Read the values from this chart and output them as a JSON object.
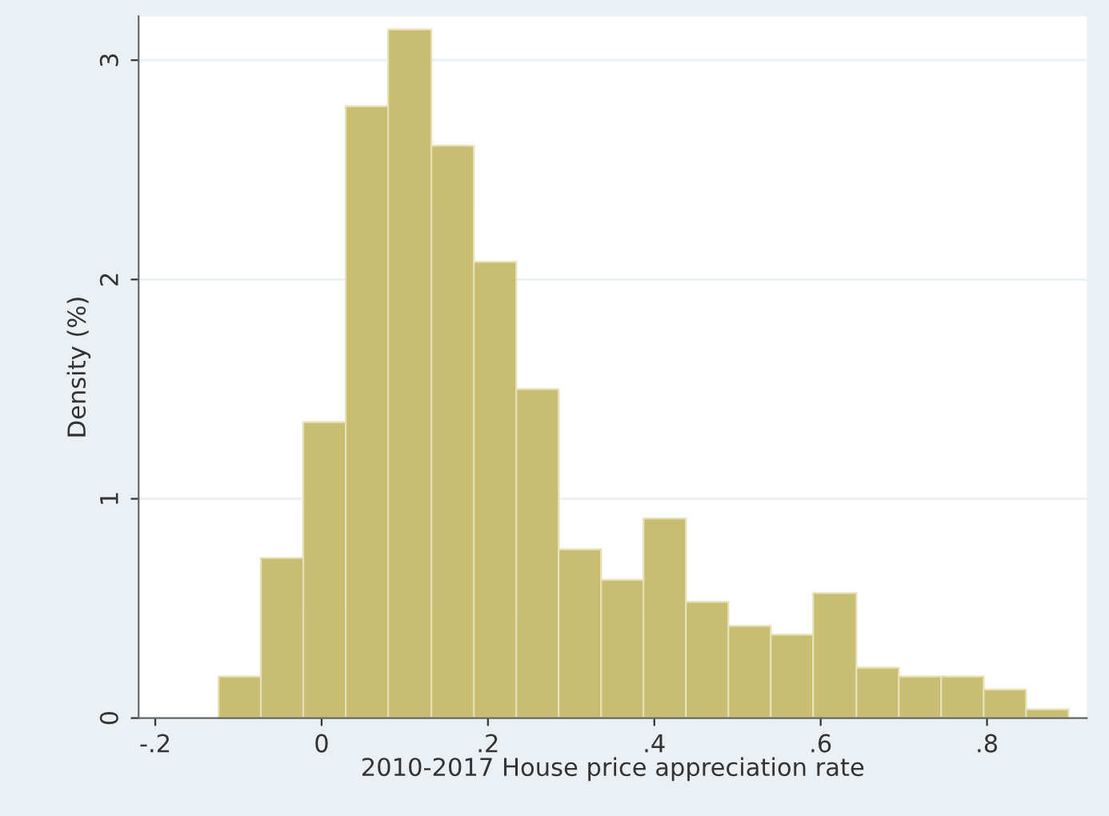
{
  "chart_data": {
    "type": "histogram",
    "xlabel": "2010-2017 House price appreciation rate",
    "ylabel": "Density (%)",
    "bins": [
      -0.124,
      -0.073,
      -0.022,
      0.029,
      0.08,
      0.132,
      0.183,
      0.234,
      0.285,
      0.336,
      0.387,
      0.438,
      0.489,
      0.54,
      0.591,
      0.643,
      0.694,
      0.745,
      0.796,
      0.847,
      0.898
    ],
    "values": [
      0.19,
      0.73,
      1.35,
      2.79,
      3.14,
      2.61,
      2.08,
      1.5,
      0.77,
      0.63,
      0.91,
      0.53,
      0.42,
      0.38,
      0.57,
      0.23,
      0.19,
      0.19,
      0.13,
      0.04
    ],
    "color": "#c9bd72",
    "xlim": [
      -0.22,
      0.92
    ],
    "ylim": [
      0,
      3.2
    ],
    "xticks": [
      {
        "value": -0.2,
        "label": "-.2"
      },
      0,
      {
        "value": 0.2,
        "label": ".2"
      },
      {
        "value": 0.4,
        "label": ".4"
      },
      {
        "value": 0.6,
        "label": ".6"
      },
      {
        "value": 0.8,
        "label": ".8"
      }
    ],
    "yticks": [
      0,
      1,
      2,
      3
    ],
    "grid": "y"
  }
}
